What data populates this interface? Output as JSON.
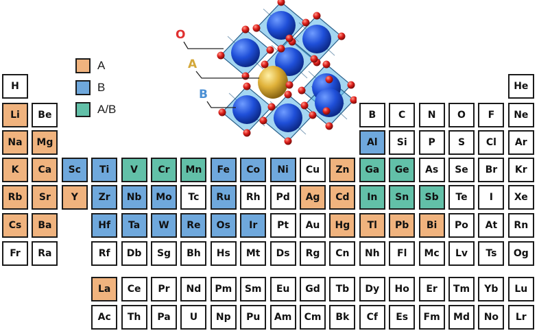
{
  "legend": [
    {
      "label": "A",
      "color": "#f0b37e",
      "cls": "cA"
    },
    {
      "label": "B",
      "color": "#6fa8dc",
      "cls": "cB"
    },
    {
      "label": "A/B",
      "color": "#62c0a8",
      "cls": "cAB"
    }
  ],
  "crystal": {
    "labels": {
      "o": "O",
      "a": "A",
      "b": "B"
    },
    "colors": {
      "o": "#e03030",
      "a": "#d4a83a",
      "b": "#4a8fd4",
      "octahedron": "#5ab4e6",
      "b_sphere": "#1f4fd8",
      "a_sphere": "#e0b23a",
      "o_sphere": "#e0201c"
    }
  },
  "colors": {
    "A": "#f0b37e",
    "B": "#6fa8dc",
    "A/B": "#62c0a8",
    "none": "#ffffff",
    "border": "#1a1a1a"
  },
  "rows": [
    [
      [
        1,
        "H",
        "N"
      ],
      [
        18,
        "He",
        "N"
      ]
    ],
    [
      [
        1,
        "Li",
        "A"
      ],
      [
        2,
        "Be",
        "N"
      ],
      [
        13,
        "B",
        "N"
      ],
      [
        14,
        "C",
        "N"
      ],
      [
        15,
        "N",
        "N"
      ],
      [
        16,
        "O",
        "N"
      ],
      [
        17,
        "F",
        "N"
      ],
      [
        18,
        "Ne",
        "N"
      ]
    ],
    [
      [
        1,
        "Na",
        "A"
      ],
      [
        2,
        "Mg",
        "A"
      ],
      [
        13,
        "Al",
        "B"
      ],
      [
        14,
        "Si",
        "N"
      ],
      [
        15,
        "P",
        "N"
      ],
      [
        16,
        "S",
        "N"
      ],
      [
        17,
        "Cl",
        "N"
      ],
      [
        18,
        "Ar",
        "N"
      ]
    ],
    [
      [
        1,
        "K",
        "A"
      ],
      [
        2,
        "Ca",
        "A"
      ],
      [
        3,
        "Sc",
        "B"
      ],
      [
        4,
        "Ti",
        "B"
      ],
      [
        5,
        "V",
        "AB"
      ],
      [
        6,
        "Cr",
        "AB"
      ],
      [
        7,
        "Mn",
        "AB"
      ],
      [
        8,
        "Fe",
        "B"
      ],
      [
        9,
        "Co",
        "B"
      ],
      [
        10,
        "Ni",
        "B"
      ],
      [
        11,
        "Cu",
        "N"
      ],
      [
        12,
        "Zn",
        "A"
      ],
      [
        13,
        "Ga",
        "AB"
      ],
      [
        14,
        "Ge",
        "AB"
      ],
      [
        15,
        "As",
        "N"
      ],
      [
        16,
        "Se",
        "N"
      ],
      [
        17,
        "Br",
        "N"
      ],
      [
        18,
        "Kr",
        "N"
      ]
    ],
    [
      [
        1,
        "Rb",
        "A"
      ],
      [
        2,
        "Sr",
        "A"
      ],
      [
        3,
        "Y",
        "A"
      ],
      [
        4,
        "Zr",
        "B"
      ],
      [
        5,
        "Nb",
        "B"
      ],
      [
        6,
        "Mo",
        "B"
      ],
      [
        7,
        "Tc",
        "N"
      ],
      [
        8,
        "Ru",
        "B"
      ],
      [
        9,
        "Rh",
        "N"
      ],
      [
        10,
        "Pd",
        "N"
      ],
      [
        11,
        "Ag",
        "A"
      ],
      [
        12,
        "Cd",
        "A"
      ],
      [
        13,
        "In",
        "AB"
      ],
      [
        14,
        "Sn",
        "AB"
      ],
      [
        15,
        "Sb",
        "AB"
      ],
      [
        16,
        "Te",
        "N"
      ],
      [
        17,
        "I",
        "N"
      ],
      [
        18,
        "Xe",
        "N"
      ]
    ],
    [
      [
        1,
        "Cs",
        "A"
      ],
      [
        2,
        "Ba",
        "A"
      ],
      [
        4,
        "Hf",
        "B"
      ],
      [
        5,
        "Ta",
        "B"
      ],
      [
        6,
        "W",
        "B"
      ],
      [
        7,
        "Re",
        "B"
      ],
      [
        8,
        "Os",
        "B"
      ],
      [
        9,
        "Ir",
        "B"
      ],
      [
        10,
        "Pt",
        "N"
      ],
      [
        11,
        "Au",
        "N"
      ],
      [
        12,
        "Hg",
        "A"
      ],
      [
        13,
        "Tl",
        "A"
      ],
      [
        14,
        "Pb",
        "A"
      ],
      [
        15,
        "Bi",
        "A"
      ],
      [
        16,
        "Po",
        "N"
      ],
      [
        17,
        "At",
        "N"
      ],
      [
        18,
        "Rn",
        "N"
      ]
    ],
    [
      [
        1,
        "Fr",
        "N"
      ],
      [
        2,
        "Ra",
        "N"
      ],
      [
        4,
        "Rf",
        "N"
      ],
      [
        5,
        "Db",
        "N"
      ],
      [
        6,
        "Sg",
        "N"
      ],
      [
        7,
        "Bh",
        "N"
      ],
      [
        8,
        "Hs",
        "N"
      ],
      [
        9,
        "Mt",
        "N"
      ],
      [
        10,
        "Ds",
        "N"
      ],
      [
        11,
        "Rg",
        "N"
      ],
      [
        12,
        "Cn",
        "N"
      ],
      [
        13,
        "Nh",
        "N"
      ],
      [
        14,
        "Fl",
        "N"
      ],
      [
        15,
        "Mc",
        "N"
      ],
      [
        16,
        "Lv",
        "N"
      ],
      [
        17,
        "Ts",
        "N"
      ],
      [
        18,
        "Og",
        "N"
      ]
    ],
    [
      [
        4,
        "La",
        "A"
      ],
      [
        5,
        "Ce",
        "N"
      ],
      [
        6,
        "Pr",
        "N"
      ],
      [
        7,
        "Nd",
        "N"
      ],
      [
        8,
        "Pm",
        "N"
      ],
      [
        9,
        "Sm",
        "N"
      ],
      [
        10,
        "Eu",
        "N"
      ],
      [
        11,
        "Gd",
        "N"
      ],
      [
        12,
        "Tb",
        "N"
      ],
      [
        13,
        "Dy",
        "N"
      ],
      [
        14,
        "Ho",
        "N"
      ],
      [
        15,
        "Er",
        "N"
      ],
      [
        16,
        "Tm",
        "N"
      ],
      [
        17,
        "Yb",
        "N"
      ],
      [
        18,
        "Lu",
        "N"
      ]
    ],
    [
      [
        4,
        "Ac",
        "N"
      ],
      [
        5,
        "Th",
        "N"
      ],
      [
        6,
        "Pa",
        "N"
      ],
      [
        7,
        "U",
        "N"
      ],
      [
        8,
        "Np",
        "N"
      ],
      [
        9,
        "Pu",
        "N"
      ],
      [
        10,
        "Am",
        "N"
      ],
      [
        11,
        "Cm",
        "N"
      ],
      [
        12,
        "Bk",
        "N"
      ],
      [
        13,
        "Cf",
        "N"
      ],
      [
        14,
        "Es",
        "N"
      ],
      [
        15,
        "Fm",
        "N"
      ],
      [
        16,
        "Md",
        "N"
      ],
      [
        17,
        "No",
        "N"
      ],
      [
        18,
        "Lr",
        "N"
      ]
    ]
  ]
}
